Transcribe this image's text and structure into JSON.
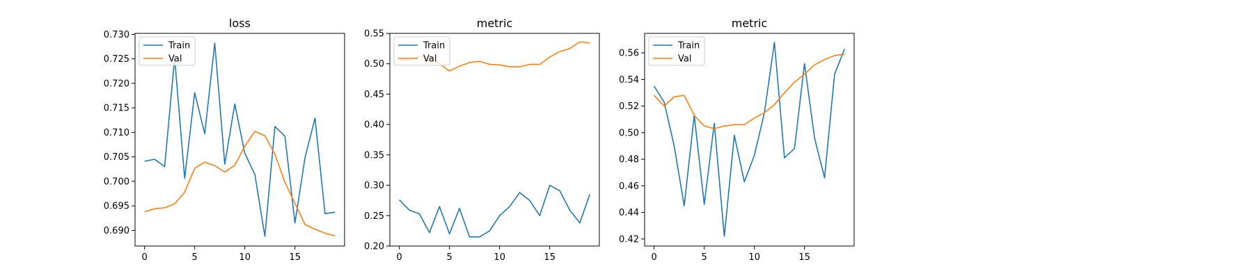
{
  "chart_data": [
    {
      "type": "line",
      "title": "loss",
      "xlabel": "",
      "ylabel": "",
      "x": [
        0,
        1,
        2,
        3,
        4,
        5,
        6,
        7,
        8,
        9,
        10,
        11,
        12,
        13,
        14,
        15,
        16,
        17,
        18,
        19
      ],
      "xlim": [
        -0.95,
        19.95
      ],
      "ylim": [
        0.6868,
        0.7302
      ],
      "xticks": [
        0,
        5,
        10,
        15
      ],
      "xtick_labels": [
        "0",
        "5",
        "10",
        "15"
      ],
      "yticks": [
        0.69,
        0.695,
        0.7,
        0.705,
        0.71,
        0.715,
        0.72,
        0.725,
        0.73
      ],
      "ytick_labels": [
        "0.690",
        "0.695",
        "0.700",
        "0.705",
        "0.710",
        "0.715",
        "0.720",
        "0.725",
        "0.730"
      ],
      "grid": false,
      "legend": "upper-left",
      "series": [
        {
          "name": "Train",
          "color": "#1f77b4",
          "values": [
            0.7041,
            0.7045,
            0.703,
            0.7252,
            0.7006,
            0.7181,
            0.7097,
            0.7282,
            0.7035,
            0.7158,
            0.7057,
            0.7014,
            0.6888,
            0.7112,
            0.7092,
            0.6915,
            0.7048,
            0.7129,
            0.6934,
            0.6937
          ]
        },
        {
          "name": "Val",
          "color": "#ff7f0e",
          "values": [
            0.6938,
            0.6944,
            0.6946,
            0.6954,
            0.6978,
            0.7027,
            0.7039,
            0.7032,
            0.7019,
            0.7033,
            0.7072,
            0.7102,
            0.7093,
            0.7055,
            0.6998,
            0.6955,
            0.6912,
            0.6902,
            0.6894,
            0.6889
          ]
        }
      ]
    },
    {
      "type": "line",
      "title": "metric",
      "xlabel": "",
      "ylabel": "",
      "x": [
        0,
        1,
        2,
        3,
        4,
        5,
        6,
        7,
        8,
        9,
        10,
        11,
        12,
        13,
        14,
        15,
        16,
        17,
        18,
        19
      ],
      "xlim": [
        -0.95,
        19.95
      ],
      "ylim": [
        0.2,
        0.55
      ],
      "xticks": [
        0,
        5,
        10,
        15
      ],
      "xtick_labels": [
        "0",
        "5",
        "10",
        "15"
      ],
      "yticks": [
        0.2,
        0.25,
        0.3,
        0.35,
        0.4,
        0.45,
        0.5,
        0.55
      ],
      "ytick_labels": [
        "0.20",
        "0.25",
        "0.30",
        "0.35",
        "0.40",
        "0.45",
        "0.50",
        "0.55"
      ],
      "grid": false,
      "legend": "upper-left",
      "series": [
        {
          "name": "Train",
          "color": "#1f77b4",
          "values": [
            0.276,
            0.259,
            0.253,
            0.222,
            0.265,
            0.22,
            0.262,
            0.215,
            0.215,
            0.225,
            0.25,
            0.265,
            0.288,
            0.275,
            0.25,
            0.3,
            0.291,
            0.259,
            0.238,
            0.285
          ]
        },
        {
          "name": "Val",
          "color": "#ff7f0e",
          "values": [
            0.506,
            0.507,
            0.512,
            0.51,
            0.5,
            0.488,
            0.496,
            0.502,
            0.504,
            0.499,
            0.498,
            0.495,
            0.495,
            0.499,
            0.499,
            0.511,
            0.52,
            0.525,
            0.536,
            0.534
          ]
        }
      ]
    },
    {
      "type": "line",
      "title": "metric",
      "xlabel": "",
      "ylabel": "",
      "x": [
        0,
        1,
        2,
        3,
        4,
        5,
        6,
        7,
        8,
        9,
        10,
        11,
        12,
        13,
        14,
        15,
        16,
        17,
        18,
        19
      ],
      "xlim": [
        -0.95,
        19.95
      ],
      "ylim": [
        0.4147,
        0.5747
      ],
      "xticks": [
        0,
        5,
        10,
        15
      ],
      "xtick_labels": [
        "0",
        "5",
        "10",
        "15"
      ],
      "yticks": [
        0.42,
        0.44,
        0.46,
        0.48,
        0.5,
        0.52,
        0.54,
        0.56
      ],
      "ytick_labels": [
        "0.42",
        "0.44",
        "0.46",
        "0.48",
        "0.50",
        "0.52",
        "0.54",
        "0.56"
      ],
      "grid": false,
      "legend": "upper-left",
      "series": [
        {
          "name": "Train",
          "color": "#1f77b4",
          "values": [
            0.535,
            0.523,
            0.49,
            0.445,
            0.513,
            0.446,
            0.507,
            0.422,
            0.498,
            0.463,
            0.483,
            0.515,
            0.568,
            0.481,
            0.488,
            0.552,
            0.496,
            0.466,
            0.544,
            0.563
          ]
        },
        {
          "name": "Val",
          "color": "#ff7f0e",
          "values": [
            0.528,
            0.52,
            0.527,
            0.528,
            0.513,
            0.505,
            0.503,
            0.505,
            0.506,
            0.506,
            0.511,
            0.515,
            0.521,
            0.53,
            0.538,
            0.544,
            0.551,
            0.555,
            0.558,
            0.559
          ]
        }
      ]
    }
  ]
}
